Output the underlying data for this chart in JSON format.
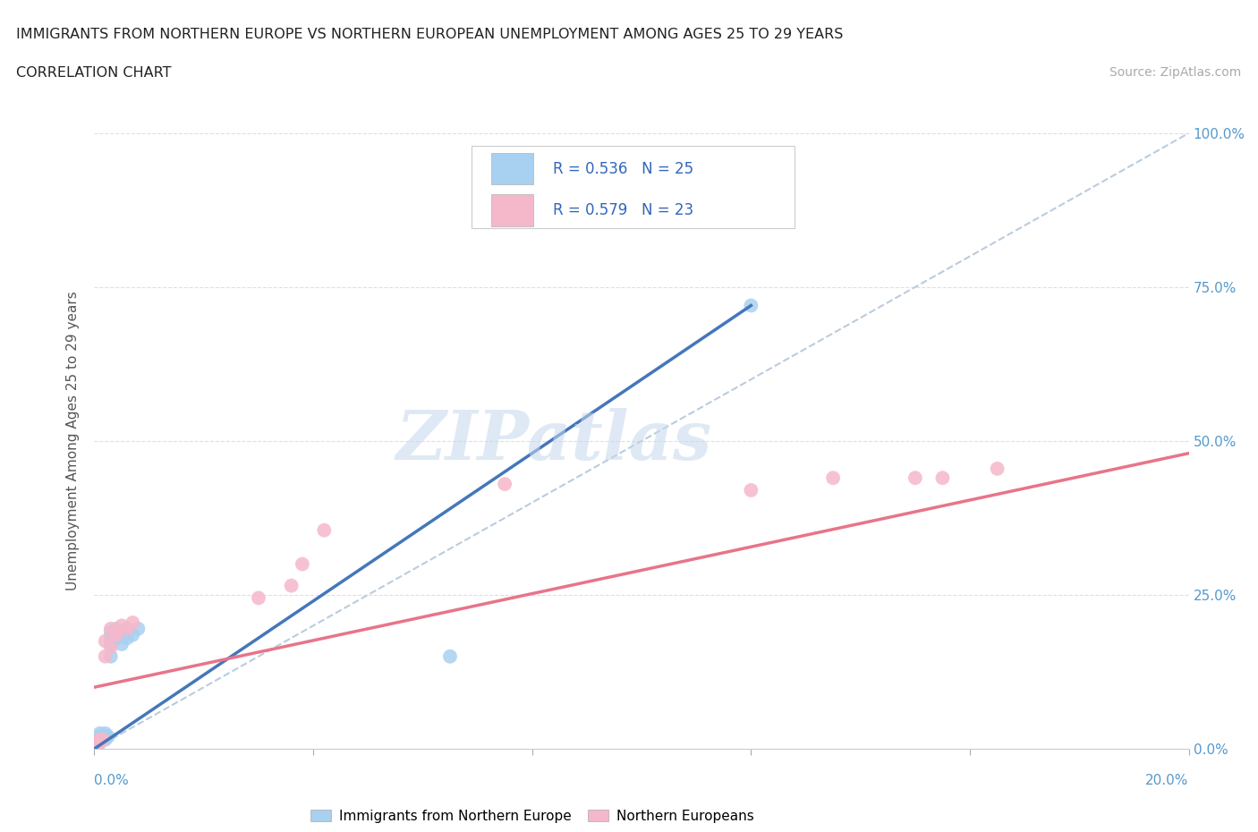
{
  "title": "IMMIGRANTS FROM NORTHERN EUROPE VS NORTHERN EUROPEAN UNEMPLOYMENT AMONG AGES 25 TO 29 YEARS",
  "subtitle": "CORRELATION CHART",
  "source": "Source: ZipAtlas.com",
  "xlabel_bottom_left": "0.0%",
  "xlabel_bottom_right": "20.0%",
  "ylabel": "Unemployment Among Ages 25 to 29 years",
  "yaxis_labels": [
    "0.0%",
    "25.0%",
    "50.0%",
    "75.0%",
    "100.0%"
  ],
  "xaxis_ticks": [
    0.0,
    0.04,
    0.08,
    0.12,
    0.16,
    0.2
  ],
  "yaxis_ticks": [
    0.0,
    0.25,
    0.5,
    0.75,
    1.0
  ],
  "xlim": [
    0.0,
    0.2
  ],
  "ylim": [
    0.0,
    1.0
  ],
  "blue_color": "#A8D0F0",
  "pink_color": "#F5B8CB",
  "blue_line_color": "#4477BB",
  "pink_line_color": "#E8748A",
  "ref_line_color": "#BBCCDD",
  "legend_blue_R": "R = 0.536",
  "legend_blue_N": "N = 25",
  "legend_pink_R": "R = 0.579",
  "legend_pink_N": "N = 23",
  "legend_label_blue": "Immigrants from Northern Europe",
  "legend_label_pink": "Northern Europeans",
  "blue_scatter_x": [
    0.0005,
    0.0005,
    0.001,
    0.001,
    0.001,
    0.001,
    0.001,
    0.0015,
    0.002,
    0.002,
    0.002,
    0.0025,
    0.003,
    0.003,
    0.003,
    0.003,
    0.004,
    0.004,
    0.005,
    0.005,
    0.006,
    0.007,
    0.008,
    0.065,
    0.12
  ],
  "blue_scatter_y": [
    0.01,
    0.015,
    0.01,
    0.012,
    0.015,
    0.02,
    0.025,
    0.015,
    0.015,
    0.02,
    0.025,
    0.02,
    0.15,
    0.17,
    0.18,
    0.19,
    0.18,
    0.195,
    0.17,
    0.19,
    0.18,
    0.185,
    0.195,
    0.15,
    0.72
  ],
  "pink_scatter_x": [
    0.0005,
    0.001,
    0.001,
    0.0015,
    0.002,
    0.002,
    0.003,
    0.003,
    0.004,
    0.004,
    0.005,
    0.006,
    0.007,
    0.03,
    0.036,
    0.038,
    0.042,
    0.075,
    0.12,
    0.135,
    0.15,
    0.155,
    0.165
  ],
  "pink_scatter_y": [
    0.01,
    0.01,
    0.015,
    0.015,
    0.15,
    0.175,
    0.165,
    0.195,
    0.185,
    0.19,
    0.2,
    0.195,
    0.205,
    0.245,
    0.265,
    0.3,
    0.355,
    0.43,
    0.42,
    0.44,
    0.44,
    0.44,
    0.455
  ],
  "blue_line_x": [
    0.0,
    0.12
  ],
  "blue_line_y": [
    0.0,
    0.72
  ],
  "pink_line_x": [
    0.0,
    0.2
  ],
  "pink_line_y": [
    0.1,
    0.48
  ],
  "ref_line_x": [
    0.0,
    0.2
  ],
  "ref_line_y": [
    0.0,
    1.0
  ],
  "watermark_text": "ZIPatlas",
  "background_color": "#FFFFFF"
}
